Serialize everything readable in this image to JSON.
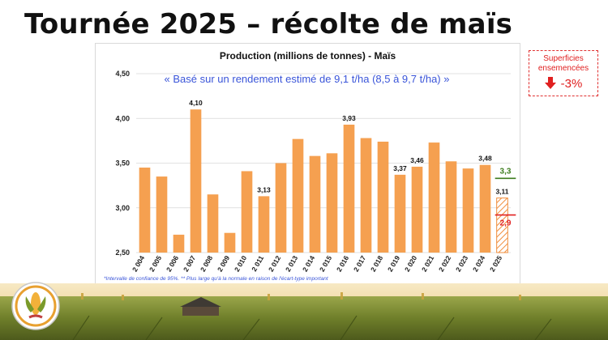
{
  "page": {
    "title": "Tournée 2025 – récolte de maïs"
  },
  "callout": {
    "label_line1": "Superficies",
    "label_line2": "ensemencées",
    "value": "-3%",
    "icon": "down-arrow-icon",
    "color": "#e02020"
  },
  "footnote": "*Intervalle de confiance de 95%.   ** Plus large qu'à la normale en raison de l'écart-type important",
  "chart_data": {
    "type": "bar",
    "title": "Production (millions de tonnes) - Maïs",
    "subtitle": "« Basé sur un rendement estimé de 9,1 t/ha (8,5 à 9,7 t/ha) »",
    "xlabel": "",
    "ylabel": "",
    "ylim": [
      2.5,
      4.5
    ],
    "yticks": [
      "2,50",
      "3,00",
      "3,50",
      "4,00",
      "4,50"
    ],
    "grid": true,
    "categories": [
      "2 004",
      "2 005",
      "2 006",
      "2 007",
      "2 008",
      "2 009",
      "2 010",
      "2 011",
      "2 012",
      "2 013",
      "2 014",
      "2 015",
      "2 016",
      "2 017",
      "2 018",
      "2 019",
      "2 020",
      "2 021",
      "2 022",
      "2 023",
      "2 024",
      "2 025"
    ],
    "values": [
      3.45,
      3.35,
      2.7,
      4.1,
      3.15,
      2.72,
      3.41,
      3.13,
      3.5,
      3.77,
      3.58,
      3.61,
      3.93,
      3.78,
      3.74,
      3.37,
      3.46,
      3.73,
      3.52,
      3.44,
      3.48,
      3.11
    ],
    "data_labels": {
      "2 007": "4,10",
      "2 011": "3,13",
      "2 016": "3,93",
      "2 019": "3,37",
      "2 020": "3,46",
      "2 024": "3,48",
      "2 025": "3,11"
    },
    "estimate_category": "2 025",
    "range_high": {
      "value": 3.33,
      "label": "3,3",
      "color": "#3e7d1f"
    },
    "range_low": {
      "value": 2.92,
      "label": "2,9",
      "color": "#e02020"
    },
    "bar_color": "#f5a050"
  }
}
